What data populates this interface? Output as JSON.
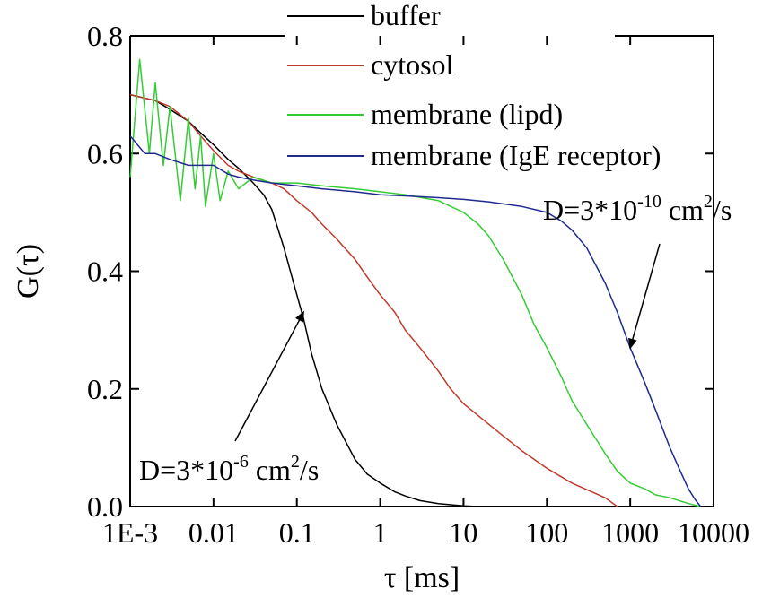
{
  "chart_data": {
    "type": "line",
    "title": "",
    "xlabel": "τ [ms]",
    "ylabel": "G(τ)",
    "xscale": "log",
    "xlim": [
      0.001,
      10000
    ],
    "ylim": [
      0,
      0.8
    ],
    "xticks": [
      0.001,
      0.01,
      0.1,
      1,
      10,
      100,
      1000,
      10000
    ],
    "xtick_labels": [
      "1E-3",
      "0.01",
      "0.1",
      "1",
      "10",
      "100",
      "1000",
      "10000"
    ],
    "yticks": [
      0,
      0.2,
      0.4,
      0.6,
      0.8
    ],
    "ytick_labels": [
      "0.0",
      "0.2",
      "0.4",
      "0.6",
      "0.8"
    ],
    "grid": false,
    "legend_position": "top",
    "series": [
      {
        "name": "buffer",
        "color": "#000000",
        "x": [
          0.001,
          0.002,
          0.003,
          0.005,
          0.007,
          0.01,
          0.015,
          0.02,
          0.03,
          0.04,
          0.05,
          0.06,
          0.07,
          0.08,
          0.1,
          0.12,
          0.15,
          0.2,
          0.3,
          0.5,
          0.7,
          1,
          1.5,
          2,
          3,
          5,
          10,
          15
        ],
        "y": [
          0.7,
          0.69,
          0.675,
          0.655,
          0.635,
          0.615,
          0.59,
          0.575,
          0.55,
          0.53,
          0.505,
          0.47,
          0.44,
          0.41,
          0.36,
          0.32,
          0.26,
          0.2,
          0.14,
          0.08,
          0.055,
          0.04,
          0.025,
          0.018,
          0.01,
          0.005,
          0.001,
          0.0
        ]
      },
      {
        "name": "cytosol",
        "color": "#c0392b",
        "x": [
          0.001,
          0.002,
          0.003,
          0.005,
          0.007,
          0.01,
          0.015,
          0.02,
          0.03,
          0.05,
          0.07,
          0.1,
          0.15,
          0.2,
          0.3,
          0.5,
          0.7,
          1,
          1.5,
          2,
          3,
          5,
          7,
          10,
          20,
          30,
          50,
          100,
          200,
          500,
          700
        ],
        "y": [
          0.7,
          0.69,
          0.68,
          0.655,
          0.63,
          0.605,
          0.58,
          0.57,
          0.56,
          0.55,
          0.54,
          0.52,
          0.5,
          0.48,
          0.455,
          0.42,
          0.39,
          0.36,
          0.33,
          0.3,
          0.27,
          0.23,
          0.2,
          0.175,
          0.14,
          0.12,
          0.095,
          0.065,
          0.04,
          0.015,
          0.0
        ]
      },
      {
        "name": "membrane (lipd)",
        "color": "#33cc33",
        "x": [
          0.001,
          0.0013,
          0.0017,
          0.002,
          0.0025,
          0.003,
          0.004,
          0.005,
          0.006,
          0.007,
          0.008,
          0.01,
          0.012,
          0.015,
          0.02,
          0.03,
          0.05,
          0.1,
          0.2,
          0.5,
          1,
          2,
          5,
          10,
          15,
          20,
          30,
          50,
          70,
          100,
          150,
          200,
          300,
          500,
          700,
          1000,
          1500,
          2000,
          3000,
          5000,
          7000
        ],
        "y": [
          0.56,
          0.76,
          0.6,
          0.72,
          0.58,
          0.68,
          0.52,
          0.66,
          0.54,
          0.63,
          0.51,
          0.6,
          0.52,
          0.57,
          0.54,
          0.56,
          0.55,
          0.55,
          0.545,
          0.54,
          0.535,
          0.53,
          0.52,
          0.5,
          0.48,
          0.46,
          0.42,
          0.36,
          0.31,
          0.27,
          0.22,
          0.18,
          0.14,
          0.09,
          0.06,
          0.04,
          0.03,
          0.02,
          0.015,
          0.005,
          0.0
        ]
      },
      {
        "name": "membrane (IgE receptor)",
        "color": "#1f2a8f",
        "x": [
          0.001,
          0.0015,
          0.002,
          0.003,
          0.005,
          0.007,
          0.01,
          0.015,
          0.02,
          0.03,
          0.05,
          0.1,
          0.2,
          0.5,
          1,
          2,
          5,
          10,
          20,
          50,
          100,
          150,
          200,
          300,
          500,
          700,
          1000,
          1500,
          2000,
          3000,
          4000,
          5000,
          6000,
          7000
        ],
        "y": [
          0.63,
          0.6,
          0.6,
          0.59,
          0.58,
          0.58,
          0.58,
          0.565,
          0.56,
          0.555,
          0.55,
          0.545,
          0.54,
          0.535,
          0.53,
          0.528,
          0.525,
          0.522,
          0.518,
          0.51,
          0.5,
          0.485,
          0.47,
          0.44,
          0.38,
          0.33,
          0.27,
          0.21,
          0.165,
          0.1,
          0.06,
          0.03,
          0.012,
          0.0
        ]
      }
    ],
    "annotations": [
      {
        "text": "D=3*10",
        "superscript": "-6",
        "suffix": " cm",
        "unit_sup": "2",
        "tail": "/s",
        "points_to": {
          "x": 0.12,
          "y": 0.33
        },
        "at": {
          "x": 0.025,
          "y": 0.065
        }
      },
      {
        "text": "D=3*10",
        "superscript": "-10",
        "suffix": " cm",
        "unit_sup": "2",
        "tail": "/s",
        "points_to": {
          "x": 1000,
          "y": 0.27
        },
        "at": {
          "x": 2000,
          "y": 0.46
        }
      }
    ]
  }
}
